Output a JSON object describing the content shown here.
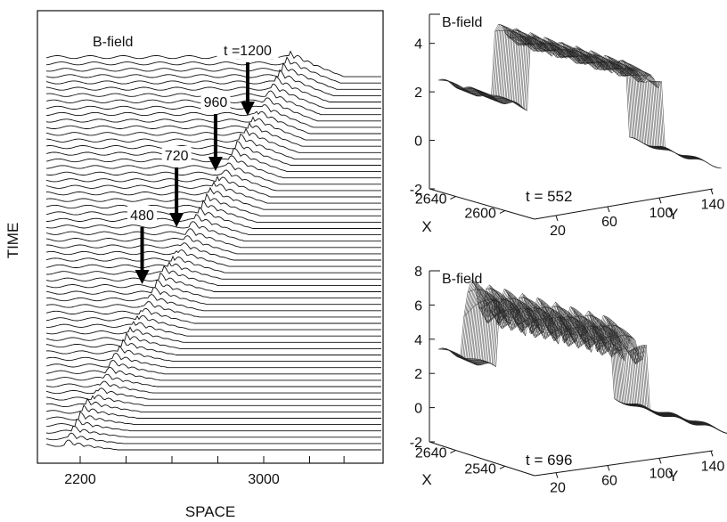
{
  "chart_data": [
    {
      "type": "line",
      "title": "B-field",
      "xlabel": "SPACE",
      "ylabel": "TIME",
      "x_ticks": [
        "2200",
        "3000"
      ],
      "annotations": [
        {
          "label": "480",
          "x": 2470
        },
        {
          "label": "720",
          "x": 2620
        },
        {
          "label": "960",
          "x": 2790
        },
        {
          "label": "t =1200",
          "x": 2930
        }
      ],
      "grid": false
    },
    {
      "type": "surface",
      "title": "B-field",
      "time_label": "t = 552",
      "z_ticks": [
        "-2",
        "0",
        "2",
        "4"
      ],
      "x_axis_label": "X",
      "x_ticks": [
        "2640",
        "2600"
      ],
      "y_axis_label": "Y",
      "y_ticks": [
        "20",
        "60",
        "100",
        "140"
      ]
    },
    {
      "type": "surface",
      "title": "B-field",
      "time_label": "t = 696",
      "z_ticks": [
        "-2",
        "0",
        "2",
        "4",
        "6",
        "8"
      ],
      "x_axis_label": "X",
      "x_ticks": [
        "2640",
        "2540"
      ],
      "y_axis_label": "Y",
      "y_ticks": [
        "20",
        "60",
        "100",
        "140"
      ]
    }
  ]
}
